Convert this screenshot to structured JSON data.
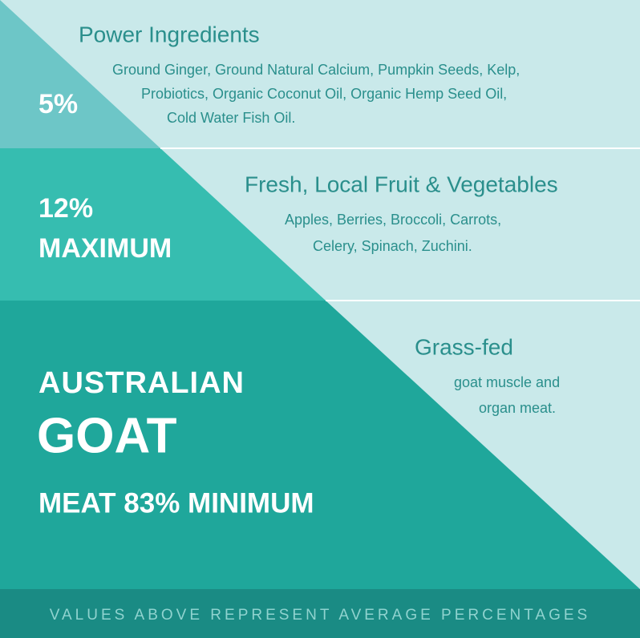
{
  "tiers": [
    {
      "badge": [
        "5%"
      ],
      "title": "Power Ingredients",
      "description": [
        "Ground Ginger, Ground Natural Calcium, Pumpkin Seeds, Kelp,",
        "Probiotics, Organic Coconut Oil, Organic Hemp Seed Oil,",
        "Cold Water Fish Oil."
      ]
    },
    {
      "badge": [
        "12%",
        "MAXIMUM"
      ],
      "title": "Fresh, Local Fruit & Vegetables",
      "description": [
        "Apples, Berries, Broccoli, Carrots,",
        "Celery, Spinach, Zuchini."
      ]
    },
    {
      "badge": [
        "AUSTRALIAN",
        "GOAT",
        "MEAT 83% MINIMUM"
      ],
      "title": "Grass-fed",
      "description": [
        "goat muscle and",
        "organ meat."
      ]
    }
  ],
  "footer": "VALUES ABOVE REPRESENT AVERAGE PERCENTAGES"
}
